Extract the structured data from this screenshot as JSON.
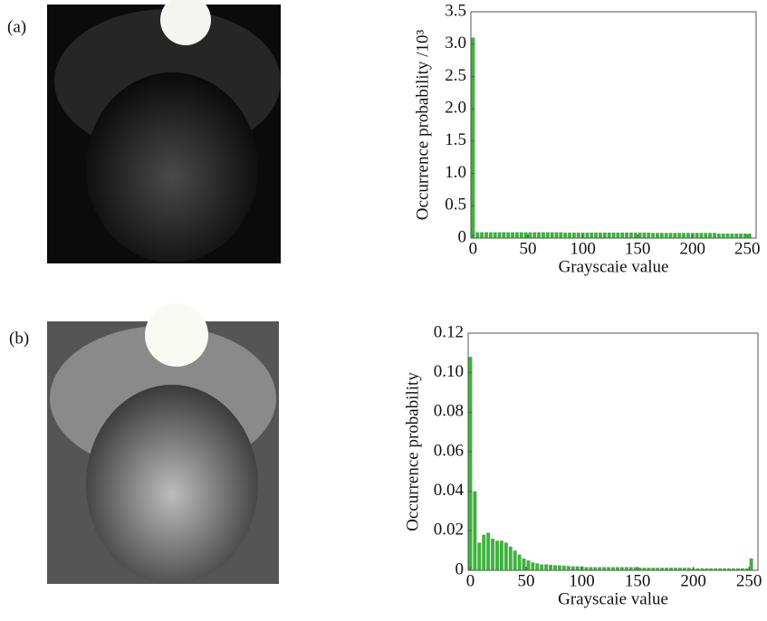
{
  "panel_labels": [
    "(a)",
    "(b)"
  ],
  "chart_data": [
    {
      "type": "bar",
      "y_label": "Occurrence probability /10³",
      "x_label": "Grayscaie value",
      "color": "#3cb43c",
      "x": [
        0,
        4,
        8,
        12,
        16,
        20,
        24,
        28,
        32,
        36,
        40,
        44,
        48,
        52,
        56,
        60,
        64,
        68,
        72,
        76,
        80,
        84,
        88,
        92,
        96,
        100,
        104,
        108,
        112,
        116,
        120,
        124,
        128,
        132,
        136,
        140,
        144,
        148,
        152,
        156,
        160,
        164,
        168,
        172,
        176,
        180,
        184,
        188,
        192,
        196,
        200,
        204,
        208,
        212,
        216,
        220,
        224,
        228,
        232,
        236,
        240,
        244,
        248,
        252
      ],
      "values": [
        3.1,
        0.09,
        0.09,
        0.09,
        0.09,
        0.09,
        0.09,
        0.09,
        0.09,
        0.09,
        0.09,
        0.09,
        0.09,
        0.09,
        0.09,
        0.09,
        0.09,
        0.09,
        0.09,
        0.09,
        0.09,
        0.085,
        0.085,
        0.085,
        0.085,
        0.085,
        0.085,
        0.085,
        0.085,
        0.085,
        0.085,
        0.085,
        0.085,
        0.085,
        0.085,
        0.085,
        0.085,
        0.085,
        0.085,
        0.085,
        0.085,
        0.08,
        0.08,
        0.08,
        0.08,
        0.08,
        0.08,
        0.08,
        0.08,
        0.08,
        0.08,
        0.08,
        0.08,
        0.08,
        0.08,
        0.08,
        0.07,
        0.07,
        0.07,
        0.07,
        0.07,
        0.07,
        0.07,
        0.07
      ],
      "xlim": [
        -2,
        258
      ],
      "xticks": [
        0,
        50,
        100,
        150,
        200,
        250
      ],
      "ylim": [
        0,
        3.5
      ],
      "yticks": [
        0,
        0.5,
        {
          "value": 1,
          "label": "1.0"
        },
        1.5,
        {
          "value": 2,
          "label": "2.0"
        },
        2.5,
        {
          "value": 3,
          "label": "3.0"
        },
        3.5
      ]
    },
    {
      "type": "bar",
      "y_label": "Occurrence probability",
      "x_label": "Grayscaie value",
      "color": "#3cb43c",
      "x": [
        0,
        4,
        8,
        12,
        16,
        20,
        24,
        28,
        32,
        36,
        40,
        44,
        48,
        52,
        56,
        60,
        64,
        68,
        72,
        76,
        80,
        84,
        88,
        92,
        96,
        100,
        104,
        108,
        112,
        116,
        120,
        124,
        128,
        132,
        136,
        140,
        144,
        148,
        152,
        156,
        160,
        164,
        168,
        172,
        176,
        180,
        184,
        188,
        192,
        196,
        200,
        204,
        208,
        212,
        216,
        220,
        224,
        228,
        232,
        236,
        240,
        244,
        248,
        252
      ],
      "values": [
        0.108,
        0.04,
        0.014,
        0.018,
        0.019,
        0.016,
        0.015,
        0.015,
        0.014,
        0.012,
        0.01,
        0.008,
        0.006,
        0.005,
        0.004,
        0.0035,
        0.003,
        0.003,
        0.0028,
        0.0026,
        0.0025,
        0.0024,
        0.0022,
        0.002,
        0.002,
        0.002,
        0.0016,
        0.0016,
        0.0016,
        0.0016,
        0.0016,
        0.0016,
        0.0016,
        0.0016,
        0.0016,
        0.0016,
        0.0016,
        0.0016,
        0.0013,
        0.0013,
        0.0013,
        0.0013,
        0.0013,
        0.0013,
        0.0013,
        0.0013,
        0.0013,
        0.0013,
        0.0013,
        0.0013,
        0.001,
        0.001,
        0.001,
        0.001,
        0.001,
        0.001,
        0.001,
        0.001,
        0.001,
        0.001,
        0.001,
        0.001,
        0.001,
        0.006
      ],
      "xlim": [
        -2,
        258
      ],
      "xticks": [
        0,
        50,
        100,
        150,
        200,
        250
      ],
      "ylim": [
        0,
        0.12
      ],
      "yticks": [
        0,
        0.02,
        0.04,
        0.06,
        0.08,
        {
          "value": 0.1,
          "label": "0.10"
        },
        0.12
      ]
    }
  ]
}
